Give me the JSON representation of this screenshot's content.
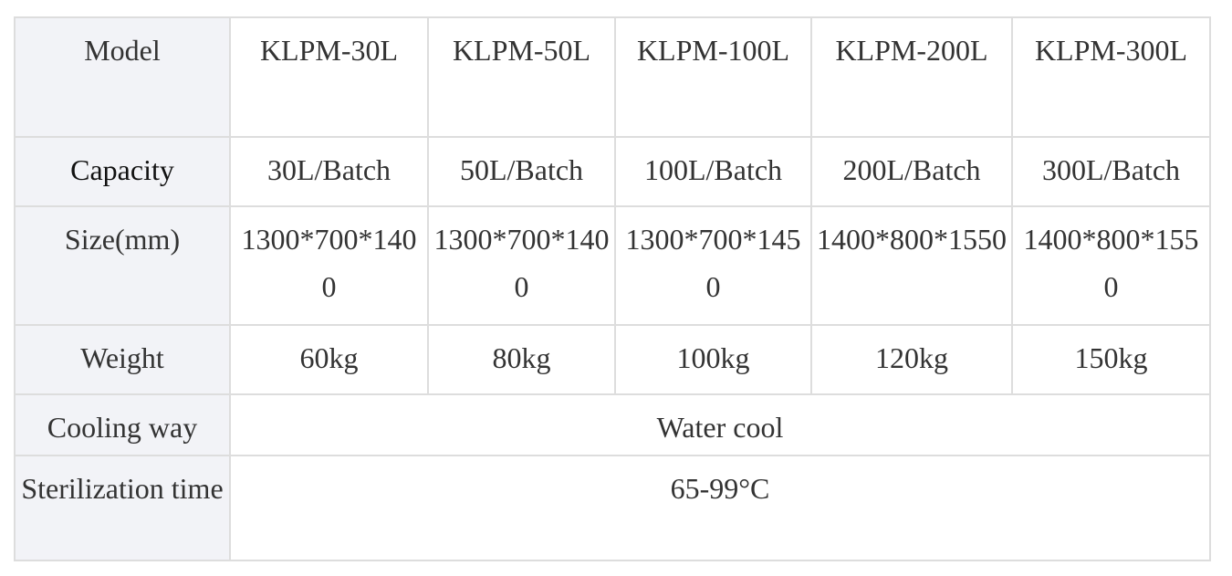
{
  "table": {
    "model": {
      "label": "Model",
      "values": [
        "KLPM-30L",
        "KLPM-50L",
        "KLPM-100L",
        "KLPM-200L",
        "KLPM-300L"
      ]
    },
    "capacity": {
      "label": "Capacity",
      "values": [
        "30L/Batch",
        "50L/Batch",
        "100L/Batch",
        "200L/Batch",
        "300L/Batch"
      ]
    },
    "size": {
      "label": "Size(mm)",
      "values": [
        "1300*700*1400",
        "1300*700*1400",
        "1300*700*1450",
        "1400*800*1550",
        "1400*800*1550"
      ]
    },
    "weight": {
      "label": "Weight",
      "values": [
        "60kg",
        "80kg",
        "100kg",
        "120kg",
        "150kg"
      ]
    },
    "cooling": {
      "label": "Cooling way",
      "value": "Water cool"
    },
    "sterilization": {
      "label": "Sterilization time",
      "value": "65-99°C"
    }
  }
}
